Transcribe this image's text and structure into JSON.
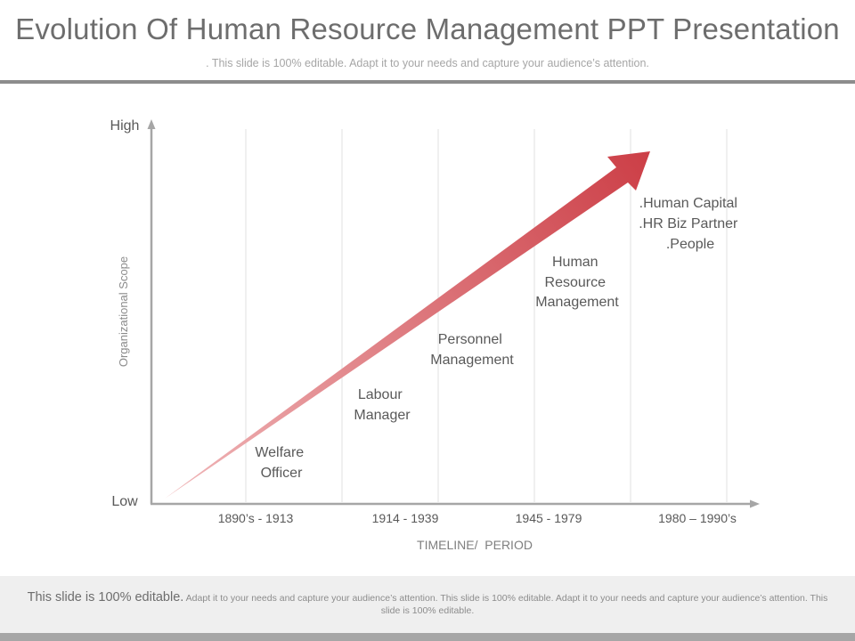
{
  "slide": {
    "title": "Evolution Of Human Resource Management PPT Presentation",
    "subtitle": ". This slide is 100% editable. Adapt it to your needs and capture your audience’s attention."
  },
  "diagram": {
    "y_axis": {
      "high_label": "High",
      "low_label": "Low",
      "title": "Organizational Scope"
    },
    "x_axis": {
      "title": "TIMELINE/  PERIOD"
    },
    "periods": [
      {
        "label": "1890’s - 1913"
      },
      {
        "label": "1914 - 1939"
      },
      {
        "label": "1945 - 1979"
      },
      {
        "label": "1980 – 1990’s"
      }
    ],
    "stages": [
      {
        "lines": [
          "Welfare",
          "Officer"
        ]
      },
      {
        "lines": [
          "Labour",
          "Manager"
        ]
      },
      {
        "lines": [
          "Personnel",
          "Management"
        ]
      },
      {
        "lines": [
          "Human",
          "Resource",
          "Management"
        ]
      },
      {
        "lines": [
          ".Human Capital",
          ".HR Biz Partner",
          ".People"
        ]
      }
    ],
    "colors": {
      "arrow_start": "#f0b7b9",
      "arrow_end": "#cc3e46",
      "axis": "#a6a6a6",
      "gridline": "#e6e6e6"
    }
  },
  "footer": {
    "lead": "This slide is 100% editable.",
    "body": "Adapt it to your needs and capture your audience’s attention. This slide is 100% editable. Adapt it to your needs and capture your audience’s attention. This slide is 100% editable."
  }
}
